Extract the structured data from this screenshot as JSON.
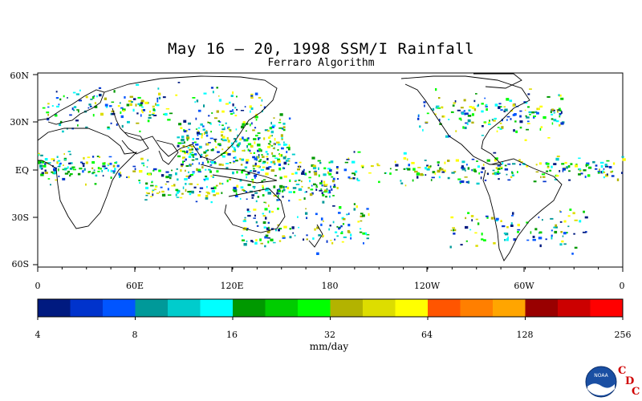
{
  "map": {
    "title": "May 16 – 20, 1998 SSM/I Rainfall",
    "subtitle": "Ferraro Algorithm",
    "lat_labels": [
      "60N",
      "30N",
      "EQ",
      "30S",
      "60S"
    ],
    "lon_labels": [
      "0",
      "60E",
      "120E",
      "180",
      "120W",
      "60W",
      "0"
    ]
  },
  "colorbar": {
    "units": "mm/day",
    "tick_labels": [
      "4",
      "8",
      "16",
      "32",
      "64",
      "128",
      "256"
    ],
    "colors": [
      "#001a80",
      "#0033cc",
      "#0055ff",
      "#009999",
      "#00cccc",
      "#00ffff",
      "#009900",
      "#00cc00",
      "#00ff00",
      "#b3b300",
      "#dddd00",
      "#ffff00",
      "#ff5500",
      "#ff7f00",
      "#ffa500",
      "#990000",
      "#cc0000",
      "#ff0000"
    ]
  },
  "logo": {
    "name": "noaa-logo",
    "text": "NOAA",
    "letters": [
      "C",
      "D",
      "C"
    ]
  }
}
